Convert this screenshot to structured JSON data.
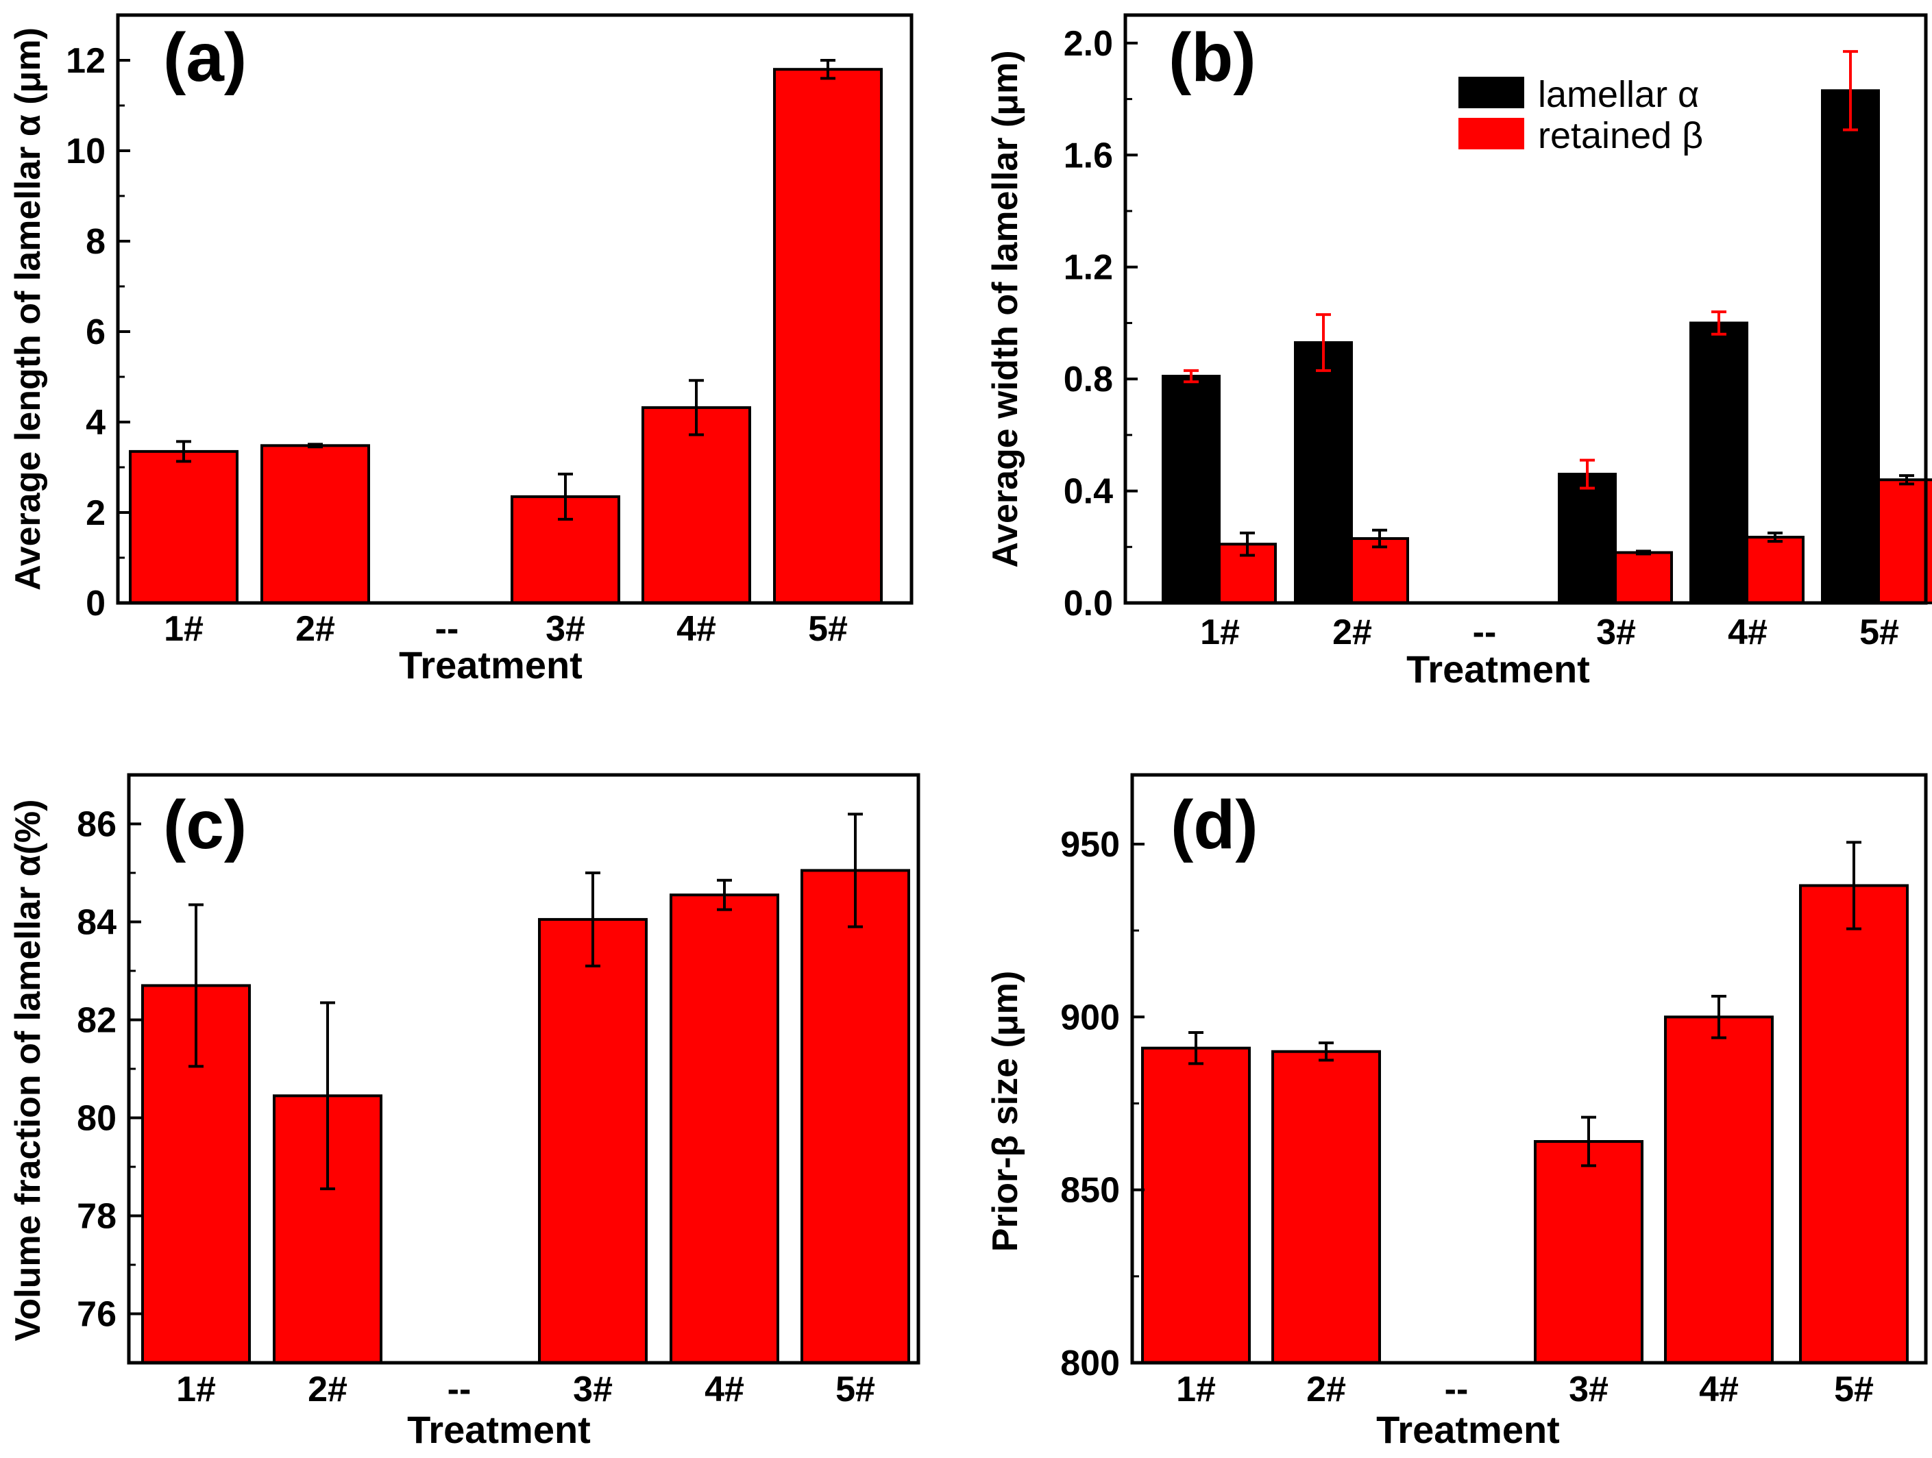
{
  "chart_data": [
    {
      "type": "bar",
      "panel_label": "(a)",
      "title": "",
      "xlabel": "Treatment",
      "ylabel": "Average length of lamellar α (μm)",
      "categories": [
        "1#",
        "2#",
        "--",
        "3#",
        "4#",
        "5#"
      ],
      "ylim": [
        0,
        13
      ],
      "yticks": [
        0,
        2,
        4,
        6,
        8,
        10,
        12
      ],
      "ytick_labels": [
        "0",
        "2",
        "4",
        "6",
        "8",
        "10",
        "12"
      ],
      "series": [
        {
          "name": "lamellar α",
          "color": "#ff0000",
          "errcolor": "#000000",
          "values": [
            3.35,
            3.48,
            null,
            2.35,
            4.32,
            11.8
          ],
          "errors": [
            0.22,
            0.03,
            null,
            0.5,
            0.6,
            0.2
          ]
        }
      ]
    },
    {
      "type": "bar",
      "panel_label": "(b)",
      "title": "",
      "xlabel": "Treatment",
      "ylabel": "Average width of lamellar  (μm)",
      "categories": [
        "1#",
        "2#",
        "--",
        "3#",
        "4#",
        "5#"
      ],
      "ylim": [
        0,
        2.1
      ],
      "yticks": [
        0,
        0.4,
        0.8,
        1.2,
        1.6,
        2.0
      ],
      "ytick_labels": [
        "0.0",
        "0.4",
        "0.8",
        "1.2",
        "1.6",
        "2.0"
      ],
      "legend_position": "top-right",
      "series": [
        {
          "name": "lamellar α",
          "color": "#000000",
          "errcolor": "#ff0000",
          "values": [
            0.81,
            0.93,
            null,
            0.46,
            1.0,
            1.83
          ],
          "errors": [
            0.02,
            0.1,
            null,
            0.05,
            0.04,
            0.14
          ]
        },
        {
          "name": "retained β",
          "color": "#ff0000",
          "errcolor": "#000000",
          "values": [
            0.21,
            0.23,
            null,
            0.18,
            0.235,
            0.44
          ],
          "errors": [
            0.04,
            0.03,
            null,
            0.005,
            0.015,
            0.015
          ]
        }
      ]
    },
    {
      "type": "bar",
      "panel_label": "(c)",
      "title": "",
      "xlabel": "Treatment",
      "ylabel": "Volume fraction of lamellar α(%)",
      "categories": [
        "1#",
        "2#",
        "--",
        "3#",
        "4#",
        "5#"
      ],
      "ylim": [
        75,
        87
      ],
      "yticks": [
        76,
        78,
        80,
        82,
        84,
        86
      ],
      "ytick_labels": [
        "76",
        "78",
        "80",
        "82",
        "84",
        "86"
      ],
      "series": [
        {
          "name": "lamellar α",
          "color": "#ff0000",
          "errcolor": "#000000",
          "values": [
            82.7,
            80.45,
            null,
            84.05,
            84.55,
            85.05
          ],
          "errors": [
            1.65,
            1.9,
            null,
            0.95,
            0.3,
            1.15
          ]
        }
      ]
    },
    {
      "type": "bar",
      "panel_label": "(d)",
      "title": "",
      "xlabel": "Treatment",
      "ylabel": "Prior-β size (μm)",
      "categories": [
        "1#",
        "2#",
        "--",
        "3#",
        "4#",
        "5#"
      ],
      "ylim": [
        800,
        970
      ],
      "yticks": [
        800,
        850,
        900,
        950
      ],
      "ytick_labels": [
        "800",
        "850",
        "900",
        "950"
      ],
      "series": [
        {
          "name": "prior-β",
          "color": "#ff0000",
          "errcolor": "#000000",
          "values": [
            891,
            890,
            null,
            864,
            900,
            938
          ],
          "errors": [
            4.5,
            2.5,
            null,
            7,
            6,
            12.5
          ]
        }
      ]
    }
  ]
}
